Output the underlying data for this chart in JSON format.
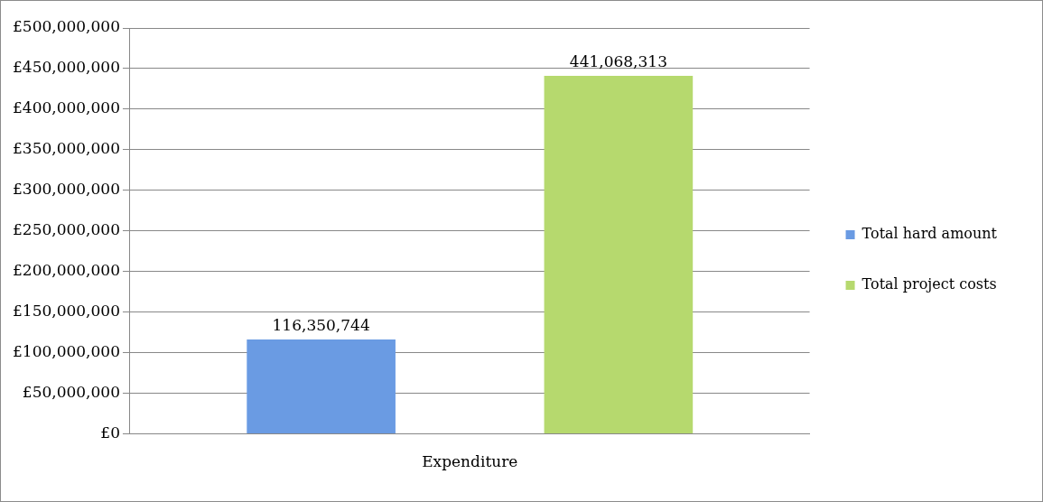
{
  "chart_data": {
    "type": "bar",
    "categories": [
      "Expenditure"
    ],
    "series": [
      {
        "name": "Total hard amount",
        "color": "#6a9be3",
        "values": [
          116350744
        ],
        "value_labels": [
          "116,350,744"
        ]
      },
      {
        "name": "Total project costs",
        "color": "#b6d96e",
        "values": [
          441068313
        ],
        "value_labels": [
          "441,068,313"
        ]
      }
    ],
    "ylim": [
      0,
      500000000
    ],
    "yticks": [
      {
        "value": 0,
        "label": "£0"
      },
      {
        "value": 50000000,
        "label": "£50,000,000"
      },
      {
        "value": 100000000,
        "label": "£100,000,000"
      },
      {
        "value": 150000000,
        "label": "£150,000,000"
      },
      {
        "value": 200000000,
        "label": "£200,000,000"
      },
      {
        "value": 250000000,
        "label": "£250,000,000"
      },
      {
        "value": 300000000,
        "label": "£300,000,000"
      },
      {
        "value": 350000000,
        "label": "£350,000,000"
      },
      {
        "value": 400000000,
        "label": "£400,000,000"
      },
      {
        "value": 450000000,
        "label": "£450,000,000"
      },
      {
        "value": 500000000,
        "label": "£500,000,000"
      }
    ],
    "grid": "y",
    "legend": "right"
  }
}
